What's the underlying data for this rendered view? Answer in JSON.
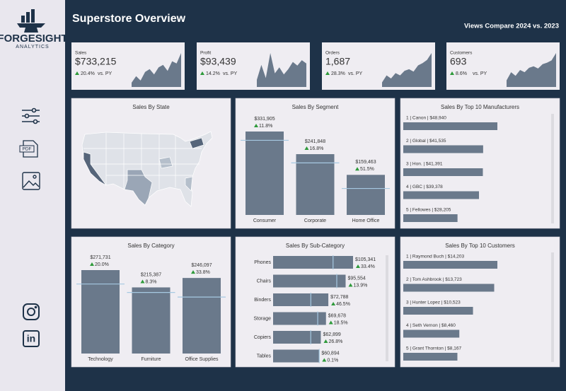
{
  "sidebar": {
    "logo_title": "FORGESIGHT",
    "logo_subtitle": "ANALYTICS",
    "pdf_icon": "PDF",
    "linkedin_icon": "in"
  },
  "header": {
    "title": "Superstore Overview",
    "subtitle": "Views Compare 2024 vs. 2023"
  },
  "kpis": [
    {
      "label": "Sales",
      "value": "$733,215",
      "change": "20.4%",
      "compare": "vs. PY",
      "sparkline": [
        12,
        30,
        18,
        42,
        50,
        35,
        55,
        62,
        45,
        72,
        66,
        95
      ]
    },
    {
      "label": "Profit",
      "value": "$93,439",
      "change": "14.2%",
      "compare": "vs. PY",
      "sparkline": [
        20,
        62,
        25,
        95,
        38,
        55,
        35,
        50,
        70,
        60,
        75,
        66
      ]
    },
    {
      "label": "Orders",
      "value": "1,687",
      "change": "28.3%",
      "compare": "vs. PY",
      "sparkline": [
        12,
        30,
        22,
        36,
        30,
        42,
        46,
        40,
        56,
        62,
        70,
        88
      ]
    },
    {
      "label": "Customers",
      "value": "693",
      "change": "8.6%",
      "compare": "vs. PY",
      "sparkline": [
        18,
        40,
        30,
        46,
        40,
        52,
        56,
        50,
        62,
        66,
        72,
        92
      ]
    }
  ],
  "chart_data": [
    {
      "type": "map",
      "title": "Sales By State"
    },
    {
      "type": "bar",
      "title": "Sales By Segment",
      "categories": [
        "Consumer",
        "Corporate",
        "Home Office"
      ],
      "values": [
        331905,
        241848,
        159463
      ],
      "value_labels": [
        "$331,905",
        "$241,848",
        "$159,463"
      ],
      "change_labels": [
        "11.8%",
        "16.8%",
        "51.5%"
      ],
      "reference_values": [
        296900,
        207100,
        105300
      ],
      "color": "#6a798b",
      "reference_color": "#a6c9e2"
    },
    {
      "type": "hbar-list",
      "title": "Sales By Top 10 Manufacturers",
      "categories": [
        "1 | Canon  | $48,940",
        "2 | Global | $41,535",
        "3 | Hon.  | $41,391",
        "4 | GBC  | $39,378",
        "5 | Fellowes | $28,205"
      ],
      "values": [
        48940,
        41535,
        41391,
        39378,
        28205
      ],
      "color": "#6a798b"
    },
    {
      "type": "bar",
      "title": "Sales By Category",
      "categories": [
        "Technology",
        "Furniture",
        "Office Supplies"
      ],
      "values": [
        271731,
        215387,
        246097
      ],
      "value_labels": [
        "$271,731",
        "$215,387",
        "$246,097"
      ],
      "change_labels": [
        "20.0%",
        "8.3%",
        "33.8%"
      ],
      "reference_values": [
        226400,
        198900,
        183900
      ],
      "color": "#6a798b",
      "reference_color": "#a6c9e2"
    },
    {
      "type": "hbar",
      "title": "Sales By Sub-Category",
      "categories": [
        "Phones",
        "Chairs",
        "Binders",
        "Storage",
        "Copiers",
        "Tables"
      ],
      "values": [
        105341,
        95554,
        72788,
        69678,
        62899,
        60894
      ],
      "value_labels": [
        "$105,341",
        "$95,554",
        "$72,788",
        "$69,678",
        "$62,899",
        "$60,894"
      ],
      "change_labels": [
        "33.4%",
        "13.9%",
        "46.5%",
        "18.5%",
        "26.8%",
        "0.1%"
      ],
      "reference_values": [
        79000,
        83900,
        49700,
        58800,
        49600,
        60800
      ],
      "color": "#6a798b",
      "reference_color": "#a6c9e2"
    },
    {
      "type": "hbar-list",
      "title": "Sales By Top 10 Customers",
      "categories": [
        "1 | Raymond Buch | $14,203",
        "2 | Tom Ashbrook | $13,723",
        "3 | Hunter Lopez | $10,523",
        "4 | Seth Vernon | $8,460",
        "5 | Grant Thornton | $8,167"
      ],
      "values": [
        14203,
        13723,
        10523,
        8460,
        8167
      ],
      "color": "#6a798b"
    }
  ]
}
